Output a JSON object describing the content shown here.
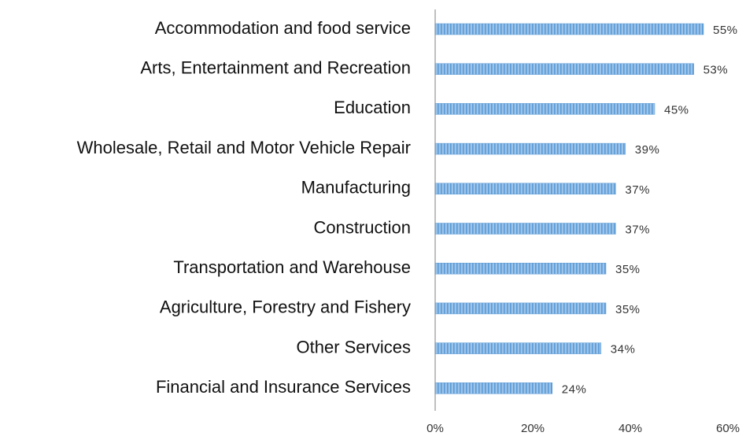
{
  "chart_data": {
    "type": "bar",
    "orientation": "horizontal",
    "categories": [
      "Accommodation and food service",
      "Arts, Entertainment and Recreation",
      "Education",
      "Wholesale, Retail and Motor Vehicle Repair",
      "Manufacturing",
      "Construction",
      "Transportation and Warehouse",
      "Agriculture, Forestry and Fishery",
      "Other Services",
      "Financial and Insurance Services"
    ],
    "values": [
      55,
      53,
      45,
      39,
      37,
      37,
      35,
      35,
      34,
      24
    ],
    "value_labels": [
      "55%",
      "53%",
      "45%",
      "39%",
      "37%",
      "37%",
      "35%",
      "35%",
      "34%",
      "24%"
    ],
    "color": "#5b9bd5",
    "xlim": [
      0,
      60
    ],
    "xticks": [
      {
        "value": 0,
        "label": "0%"
      },
      {
        "value": 20,
        "label": "20%"
      },
      {
        "value": 40,
        "label": "40%"
      },
      {
        "value": 60,
        "label": "60%"
      }
    ],
    "grid": false
  }
}
